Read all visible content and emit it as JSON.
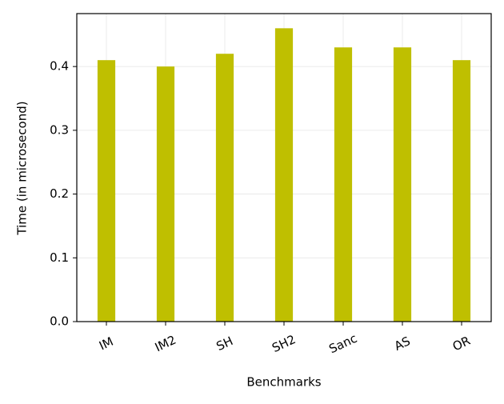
{
  "chart_data": {
    "type": "bar",
    "xlabel": "Benchmarks",
    "ylabel": "Time (in microsecond)",
    "categories": [
      "IM",
      "IM2",
      "SH",
      "SH2",
      "Sanc",
      "AS",
      "OR"
    ],
    "values": [
      0.41,
      0.4,
      0.42,
      0.46,
      0.43,
      0.43,
      0.41
    ],
    "color": "#bfbf00",
    "ylim": [
      0,
      0.483
    ],
    "yticks": [
      {
        "value": 0,
        "label": "0.0"
      },
      0.1,
      0.2,
      0.3,
      0.4
    ],
    "grid": true
  }
}
